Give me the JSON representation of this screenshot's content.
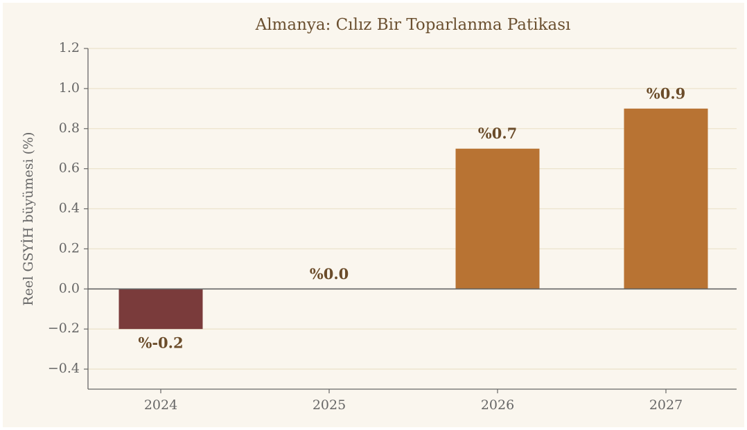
{
  "chart_data": {
    "type": "bar",
    "title": "Almanya: Cılız Bir Toparlanma Patikası",
    "ylabel": "Reel GSYİH büyümesi (%)",
    "categories": [
      "2024",
      "2025",
      "2026",
      "2027"
    ],
    "values": [
      -0.2,
      0.0,
      0.7,
      0.9
    ],
    "value_labels": [
      "%-0.2",
      "%0.0",
      "%0.7",
      "%0.9"
    ],
    "colors": [
      "#7a3b3b",
      "#b87333",
      "#b87333",
      "#b87333"
    ],
    "ylim": [
      -0.5,
      1.2
    ],
    "yticks": [
      {
        "value": -0.4,
        "label": "−0.4"
      },
      {
        "value": -0.2,
        "label": "−0.2"
      },
      {
        "value": 0,
        "label": "0.0"
      },
      0.2,
      0.4,
      0.6,
      0.8,
      {
        "value": 1,
        "label": "1.0"
      },
      {
        "value": 1.2,
        "label": "1.2"
      }
    ],
    "grid": true
  }
}
